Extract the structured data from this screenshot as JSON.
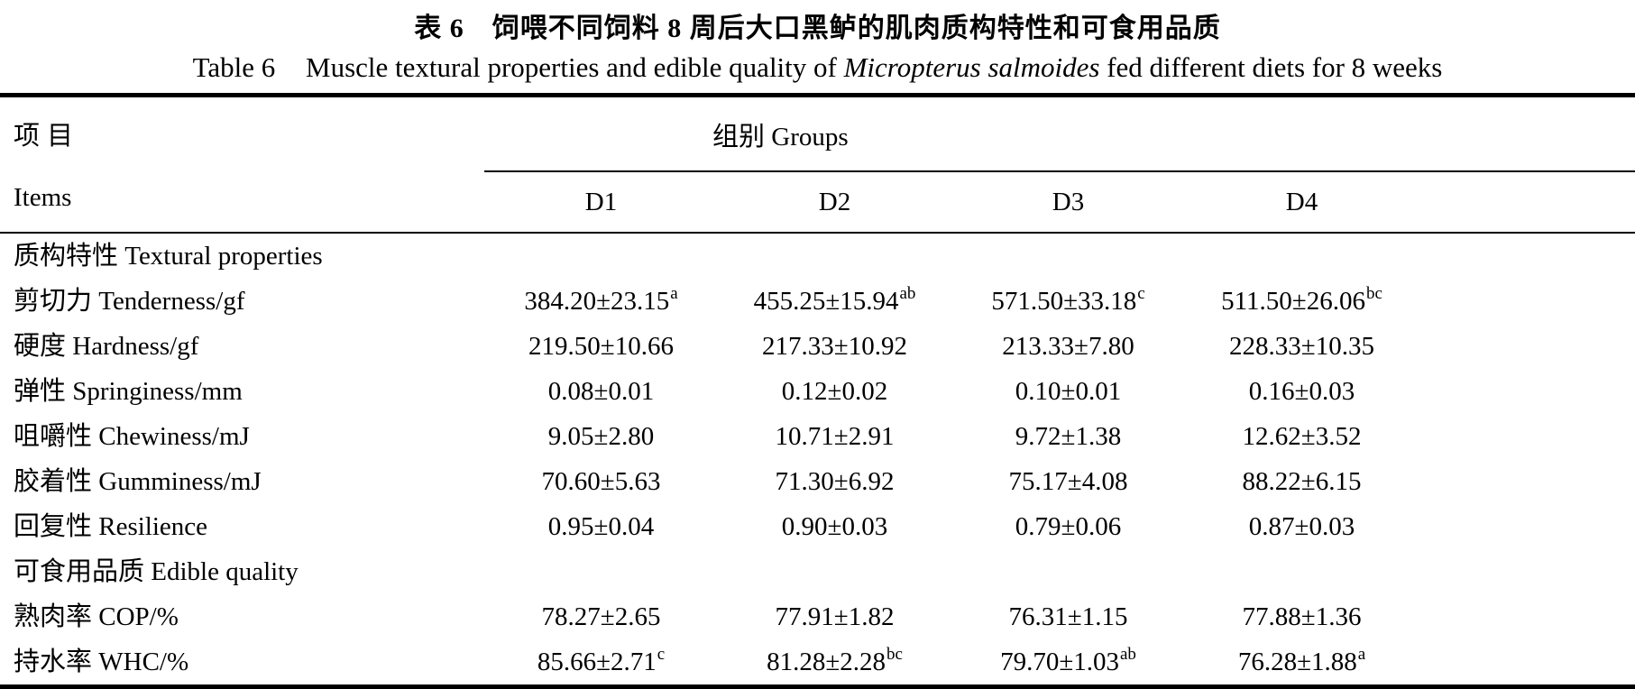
{
  "page": {
    "background": "#ffffff",
    "text_color": "#000000",
    "rule_color": "#000000"
  },
  "title": {
    "zh": "表 6　饲喂不同饲料 8 周后大口黑鲈的肌肉质构特性和可食用品质",
    "en_label": "Table 6",
    "en_before_species": "Muscle textural properties and edible quality of",
    "en_species_italic": "Micropterus salmoides",
    "en_after_species": "fed different diets for 8 weeks"
  },
  "table": {
    "items_header_zh": "项目",
    "items_header_en": "Items",
    "groups_header": "组别 Groups",
    "group_columns": [
      "D1",
      "D2",
      "D3",
      "D4"
    ],
    "rows": [
      {
        "type": "section",
        "label": "质构特性 Textural properties"
      },
      {
        "type": "data",
        "label": "剪切力 Tenderness/gf",
        "cells": [
          {
            "v": "384.20±23.15",
            "sup": "a"
          },
          {
            "v": "455.25±15.94",
            "sup": "ab"
          },
          {
            "v": "571.50±33.18",
            "sup": "c"
          },
          {
            "v": "511.50±26.06",
            "sup": "bc"
          }
        ]
      },
      {
        "type": "data",
        "label": "硬度 Hardness/gf",
        "cells": [
          {
            "v": "219.50±10.66"
          },
          {
            "v": "217.33±10.92"
          },
          {
            "v": "213.33±7.80"
          },
          {
            "v": "228.33±10.35"
          }
        ]
      },
      {
        "type": "data",
        "label": "弹性 Springiness/mm",
        "cells": [
          {
            "v": "0.08±0.01"
          },
          {
            "v": "0.12±0.02"
          },
          {
            "v": "0.10±0.01"
          },
          {
            "v": "0.16±0.03"
          }
        ]
      },
      {
        "type": "data",
        "label": "咀嚼性 Chewiness/mJ",
        "cells": [
          {
            "v": "9.05±2.80"
          },
          {
            "v": "10.71±2.91"
          },
          {
            "v": "9.72±1.38"
          },
          {
            "v": "12.62±3.52"
          }
        ]
      },
      {
        "type": "data",
        "label": "胶着性 Gumminess/mJ",
        "cells": [
          {
            "v": "70.60±5.63"
          },
          {
            "v": "71.30±6.92"
          },
          {
            "v": "75.17±4.08"
          },
          {
            "v": "88.22±6.15"
          }
        ]
      },
      {
        "type": "data",
        "label": "回复性 Resilience",
        "cells": [
          {
            "v": "0.95±0.04"
          },
          {
            "v": "0.90±0.03"
          },
          {
            "v": "0.79±0.06"
          },
          {
            "v": "0.87±0.03"
          }
        ]
      },
      {
        "type": "section",
        "label": "可食用品质 Edible quality"
      },
      {
        "type": "data",
        "label": "熟肉率 COP/%",
        "cells": [
          {
            "v": "78.27±2.65"
          },
          {
            "v": "77.91±1.82"
          },
          {
            "v": "76.31±1.15"
          },
          {
            "v": "77.88±1.36"
          }
        ]
      },
      {
        "type": "data",
        "label": "持水率 WHC/%",
        "cells": [
          {
            "v": "85.66±2.71",
            "sup": "c"
          },
          {
            "v": "81.28±2.28",
            "sup": "bc"
          },
          {
            "v": "79.70±1.03",
            "sup": "ab"
          },
          {
            "v": "76.28±1.88",
            "sup": "a"
          }
        ]
      }
    ]
  }
}
